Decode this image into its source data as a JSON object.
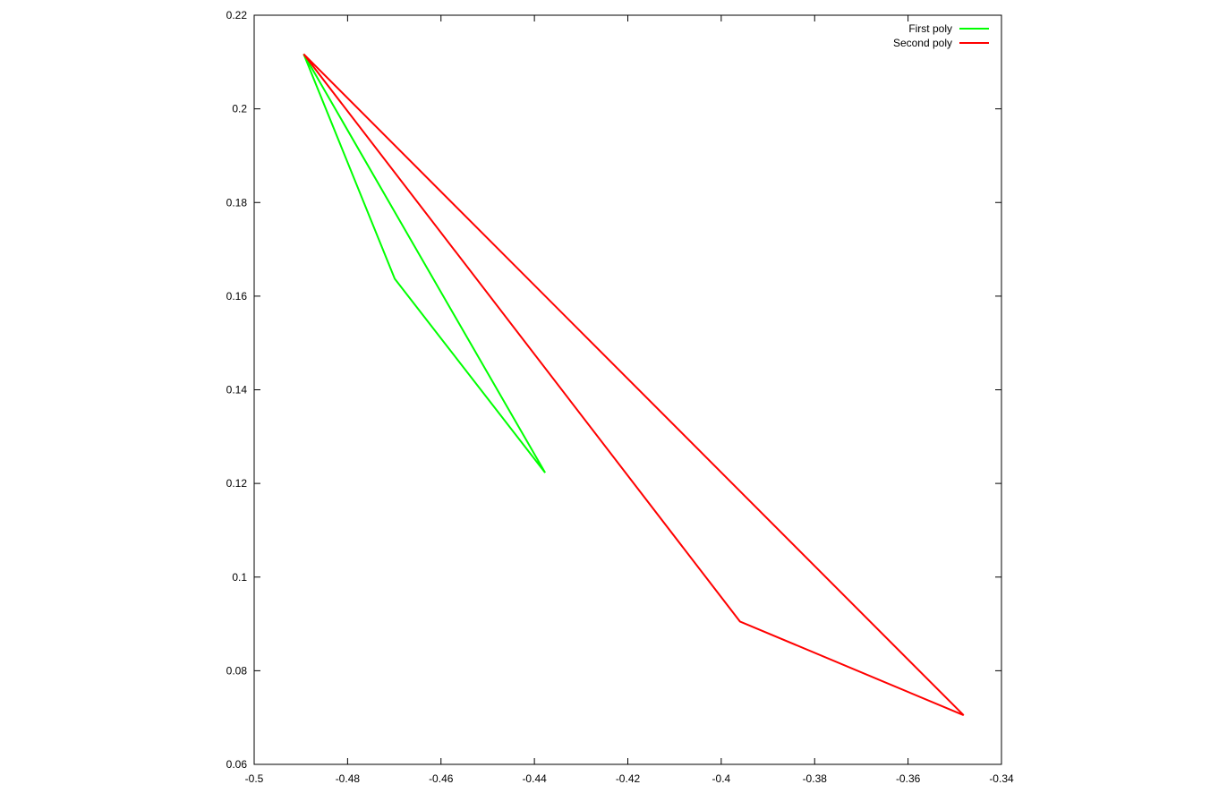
{
  "chart_data": {
    "type": "line",
    "title": "",
    "xlabel": "",
    "ylabel": "",
    "xlim": [
      -0.5,
      -0.34
    ],
    "ylim": [
      0.06,
      0.22
    ],
    "x_ticks": [
      -0.5,
      -0.48,
      -0.46,
      -0.44,
      -0.42,
      -0.4,
      -0.38,
      -0.36,
      -0.34
    ],
    "x_tick_labels": [
      "-0.5",
      "-0.48",
      "-0.46",
      "-0.44",
      "-0.42",
      "-0.4",
      "-0.38",
      "-0.36",
      "-0.34"
    ],
    "y_ticks": [
      0.06,
      0.08,
      0.1,
      0.12,
      0.14,
      0.16,
      0.18,
      0.2,
      0.22
    ],
    "y_tick_labels": [
      "0.06",
      "0.08",
      "0.1",
      "0.12",
      "0.14",
      "0.16",
      "0.18",
      "0.2",
      "0.22"
    ],
    "grid": false,
    "legend": "top-right",
    "series": [
      {
        "name": "First poly",
        "color": "#00ff00",
        "points": [
          [
            -0.4894,
            0.2117
          ],
          [
            -0.4699,
            0.1637
          ],
          [
            -0.4377,
            0.1223
          ],
          [
            -0.4894,
            0.2117
          ]
        ]
      },
      {
        "name": "Second poly",
        "color": "#ff0000",
        "points": [
          [
            -0.4894,
            0.2117
          ],
          [
            -0.396,
            0.0905
          ],
          [
            -0.3481,
            0.0705
          ],
          [
            -0.4894,
            0.2117
          ]
        ]
      }
    ]
  }
}
